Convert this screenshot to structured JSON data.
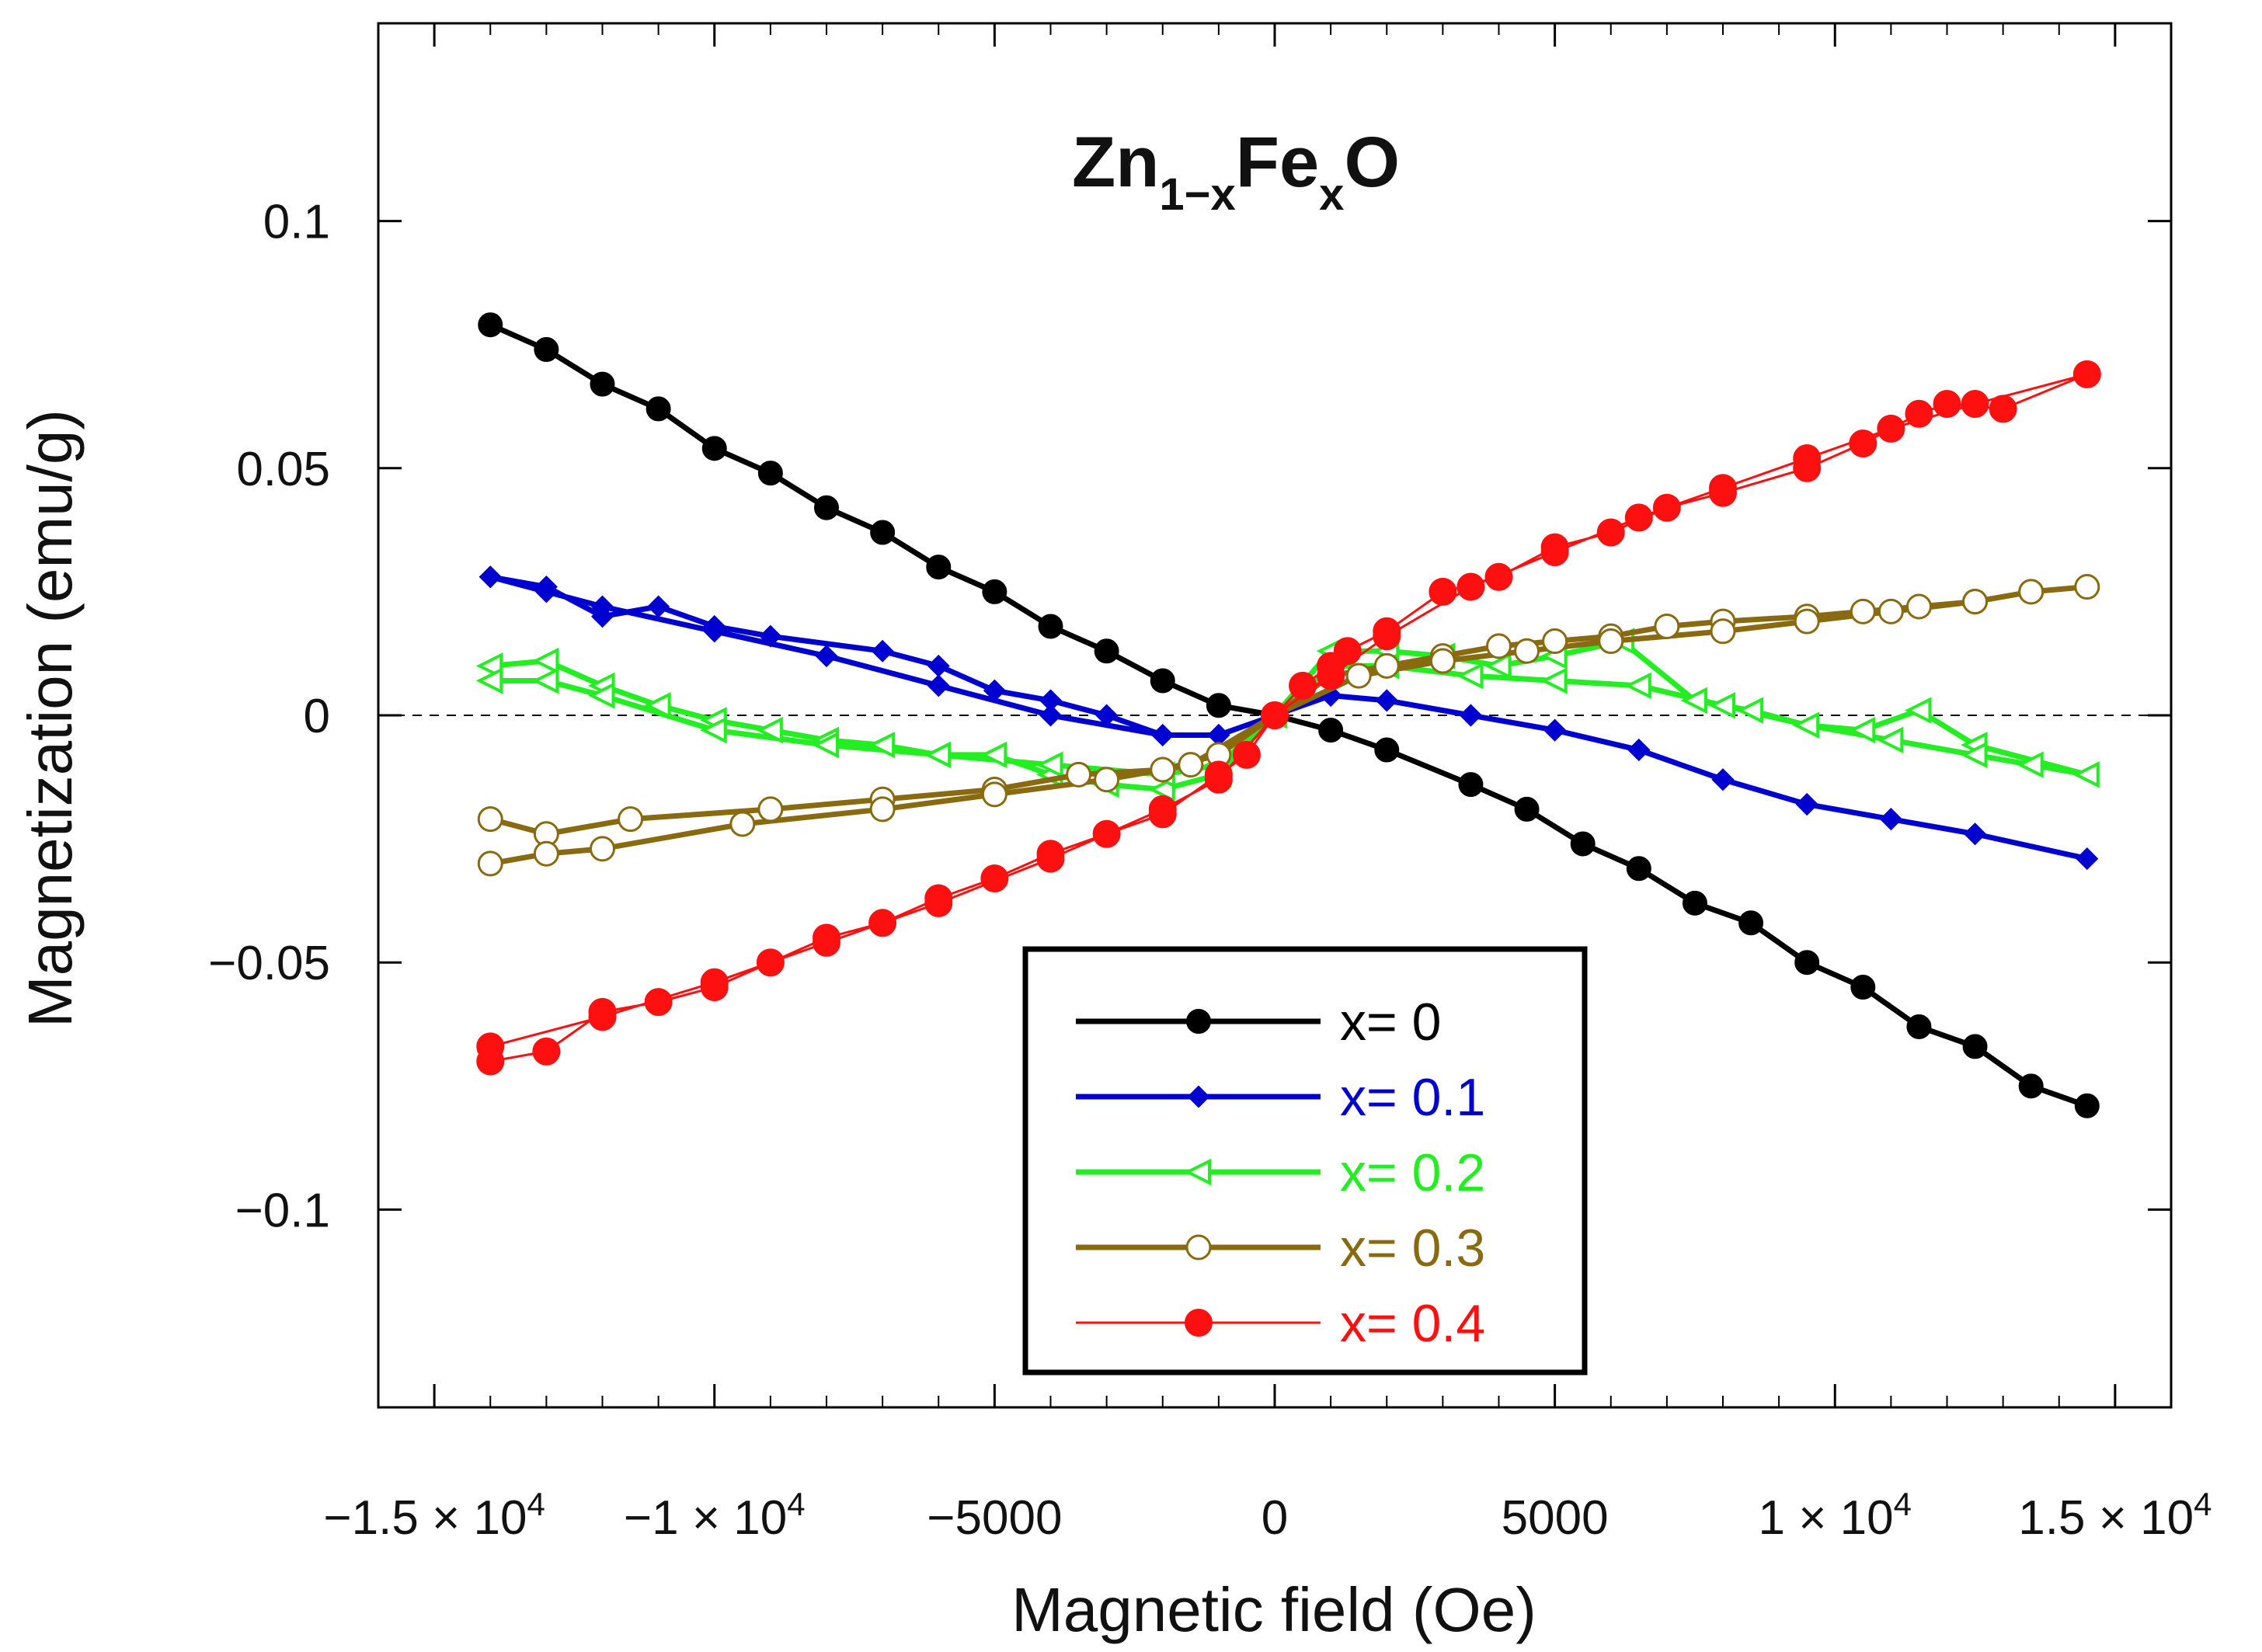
{
  "chart_data": {
    "type": "line",
    "title": {
      "base": "Zn",
      "sub1": "1−x",
      "mid": "Fe",
      "sub2": "x",
      "end": "O"
    },
    "xlabel": "Magnetic field (Oe)",
    "ylabel": "Magnetization (emu/g)",
    "xlim": [
      -16000,
      16000
    ],
    "ylim": [
      -0.14,
      0.14
    ],
    "x_ticks": [
      {
        "value": -15000,
        "mant": "−1.5 × 10",
        "exp": "4"
      },
      {
        "value": -10000,
        "mant": "−1 × 10",
        "exp": "4"
      },
      {
        "value": -5000,
        "mant": "−5000",
        "exp": ""
      },
      {
        "value": 0,
        "mant": "0",
        "exp": ""
      },
      {
        "value": 5000,
        "mant": "5000",
        "exp": ""
      },
      {
        "value": 10000,
        "mant": "1 × 10",
        "exp": "4"
      },
      {
        "value": 15000,
        "mant": "1.5 × 10",
        "exp": "4"
      }
    ],
    "y_ticks": [
      {
        "value": 0.1,
        "label": "0.1"
      },
      {
        "value": 0.05,
        "label": "0.05"
      },
      {
        "value": 0,
        "label": "0"
      },
      {
        "value": -0.05,
        "label": "−0.05"
      },
      {
        "value": -0.1,
        "label": "−0.1"
      }
    ],
    "zero_line": true,
    "legend_position": "bottom-center",
    "series": [
      {
        "name": "x= 0",
        "color": "#000000",
        "marker": "circle-filled",
        "line_width": 7,
        "points": [
          [
            -14000,
            0.079
          ],
          [
            -13000,
            0.074
          ],
          [
            -12000,
            0.067
          ],
          [
            -11000,
            0.062
          ],
          [
            -10000,
            0.054
          ],
          [
            -9000,
            0.049
          ],
          [
            -8000,
            0.042
          ],
          [
            -7000,
            0.037
          ],
          [
            -6000,
            0.03
          ],
          [
            -5000,
            0.025
          ],
          [
            -4000,
            0.018
          ],
          [
            -3000,
            0.013
          ],
          [
            -2000,
            0.007
          ],
          [
            -1000,
            0.002
          ],
          [
            0,
            0.0
          ],
          [
            1000,
            -0.003
          ],
          [
            2000,
            -0.007
          ],
          [
            3500,
            -0.014
          ],
          [
            4500,
            -0.019
          ],
          [
            5500,
            -0.026
          ],
          [
            6500,
            -0.031
          ],
          [
            7500,
            -0.038
          ],
          [
            8500,
            -0.042
          ],
          [
            9500,
            -0.05
          ],
          [
            10500,
            -0.055
          ],
          [
            11500,
            -0.063
          ],
          [
            12500,
            -0.067
          ],
          [
            13500,
            -0.075
          ],
          [
            14500,
            -0.079
          ]
        ]
      },
      {
        "name": "x= 0.1",
        "color": "#0000d0",
        "marker": "diamond-filled",
        "line_width": 7,
        "points": [
          [
            -14000,
            0.028
          ],
          [
            -13000,
            0.026
          ],
          [
            -12000,
            0.02
          ],
          [
            -11000,
            0.022
          ],
          [
            -10000,
            0.018
          ],
          [
            -9000,
            0.016
          ],
          [
            -7000,
            0.013
          ],
          [
            -6000,
            0.01
          ],
          [
            -5000,
            0.005
          ],
          [
            -4000,
            0.003
          ],
          [
            -3000,
            0.0
          ],
          [
            -2000,
            -0.004
          ],
          [
            -1000,
            -0.004
          ],
          [
            0,
            0.0
          ],
          [
            1000,
            0.004
          ],
          [
            2000,
            0.003
          ],
          [
            3500,
            0.0
          ],
          [
            5000,
            -0.003
          ],
          [
            6500,
            -0.007
          ],
          [
            8000,
            -0.013
          ],
          [
            9500,
            -0.018
          ],
          [
            11000,
            -0.021
          ],
          [
            12500,
            -0.024
          ],
          [
            14500,
            -0.029
          ],
          [
            12500,
            -0.024
          ],
          [
            11000,
            -0.021
          ],
          [
            9500,
            -0.018
          ],
          [
            8000,
            -0.013
          ],
          [
            6500,
            -0.007
          ],
          [
            5000,
            -0.003
          ],
          [
            3500,
            0.0
          ],
          [
            2000,
            0.003
          ],
          [
            1000,
            0.004
          ],
          [
            0,
            0.0
          ],
          [
            -1000,
            -0.004
          ],
          [
            -2000,
            -0.004
          ],
          [
            -4000,
            0.0
          ],
          [
            -6000,
            0.006
          ],
          [
            -8000,
            0.012
          ],
          [
            -10000,
            0.017
          ],
          [
            -12000,
            0.022
          ],
          [
            -13000,
            0.025
          ],
          [
            -14000,
            0.028
          ]
        ]
      },
      {
        "name": "x= 0.2",
        "color": "#22ee22",
        "marker": "triangle-open",
        "line_width": 7,
        "points": [
          [
            -14000,
            0.01
          ],
          [
            -13000,
            0.011
          ],
          [
            -12000,
            0.006
          ],
          [
            -11000,
            0.002
          ],
          [
            -10000,
            -0.001
          ],
          [
            -9000,
            -0.003
          ],
          [
            -8000,
            -0.005
          ],
          [
            -7000,
            -0.006
          ],
          [
            -6000,
            -0.008
          ],
          [
            -5000,
            -0.008
          ],
          [
            -4000,
            -0.012
          ],
          [
            -3000,
            -0.014
          ],
          [
            -2000,
            -0.015
          ],
          [
            -1000,
            -0.012
          ],
          [
            0,
            0.0
          ],
          [
            1000,
            0.013
          ],
          [
            2000,
            0.013
          ],
          [
            3000,
            0.012
          ],
          [
            4000,
            0.01
          ],
          [
            5000,
            0.012
          ],
          [
            6200,
            0.015
          ],
          [
            7500,
            0.003
          ],
          [
            8500,
            0.001
          ],
          [
            9500,
            -0.002
          ],
          [
            10500,
            -0.003
          ],
          [
            11500,
            0.001
          ],
          [
            12500,
            -0.006
          ],
          [
            14500,
            -0.012
          ],
          [
            13500,
            -0.01
          ],
          [
            12500,
            -0.008
          ],
          [
            11000,
            -0.005
          ],
          [
            9500,
            -0.002
          ],
          [
            8000,
            0.002
          ],
          [
            6500,
            0.006
          ],
          [
            5000,
            0.007
          ],
          [
            3500,
            0.008
          ],
          [
            2000,
            0.01
          ],
          [
            1000,
            0.01
          ],
          [
            0,
            0.0
          ],
          [
            -1000,
            -0.01
          ],
          [
            -2000,
            -0.012
          ],
          [
            -4000,
            -0.01
          ],
          [
            -6000,
            -0.008
          ],
          [
            -8000,
            -0.006
          ],
          [
            -10000,
            -0.003
          ],
          [
            -12000,
            0.004
          ],
          [
            -13000,
            0.007
          ],
          [
            -14000,
            0.007
          ]
        ]
      },
      {
        "name": "x= 0.3",
        "color": "#8a6a10",
        "marker": "circle-open",
        "line_width": 7,
        "points": [
          [
            -14000,
            -0.021
          ],
          [
            -13000,
            -0.024
          ],
          [
            -11500,
            -0.021
          ],
          [
            -9000,
            -0.019
          ],
          [
            -7000,
            -0.017
          ],
          [
            -5000,
            -0.015
          ],
          [
            -3500,
            -0.012
          ],
          [
            -2000,
            -0.011
          ],
          [
            -1000,
            -0.008
          ],
          [
            0,
            0.0
          ],
          [
            1000,
            0.008
          ],
          [
            2000,
            0.01
          ],
          [
            3000,
            0.012
          ],
          [
            4000,
            0.014
          ],
          [
            5000,
            0.015
          ],
          [
            6000,
            0.016
          ],
          [
            7000,
            0.018
          ],
          [
            8000,
            0.019
          ],
          [
            9500,
            0.02
          ],
          [
            10500,
            0.021
          ],
          [
            11500,
            0.022
          ],
          [
            12500,
            0.023
          ],
          [
            13500,
            0.025
          ],
          [
            14500,
            0.026
          ],
          [
            13500,
            0.025
          ],
          [
            12500,
            0.023
          ],
          [
            11000,
            0.021
          ],
          [
            9500,
            0.019
          ],
          [
            8000,
            0.017
          ],
          [
            6000,
            0.015
          ],
          [
            4500,
            0.013
          ],
          [
            3000,
            0.011
          ],
          [
            1500,
            0.008
          ],
          [
            0,
            0.0
          ],
          [
            -1500,
            -0.01
          ],
          [
            -3000,
            -0.013
          ],
          [
            -5000,
            -0.016
          ],
          [
            -7000,
            -0.019
          ],
          [
            -9500,
            -0.022
          ],
          [
            -12000,
            -0.027
          ],
          [
            -13000,
            -0.028
          ],
          [
            -14000,
            -0.03
          ]
        ]
      },
      {
        "name": "x= 0.4",
        "color": "#ff1010",
        "marker": "circle-filled",
        "line_width": 3,
        "points": [
          [
            -14000,
            -0.07
          ],
          [
            -13000,
            -0.068
          ],
          [
            -12000,
            -0.06
          ],
          [
            -11000,
            -0.058
          ],
          [
            -10000,
            -0.055
          ],
          [
            -9000,
            -0.05
          ],
          [
            -8000,
            -0.045
          ],
          [
            -7000,
            -0.042
          ],
          [
            -6000,
            -0.037
          ],
          [
            -5000,
            -0.033
          ],
          [
            -4000,
            -0.028
          ],
          [
            -3000,
            -0.024
          ],
          [
            -2000,
            -0.02
          ],
          [
            -1000,
            -0.012
          ],
          [
            -500,
            -0.008
          ],
          [
            0,
            0.0
          ],
          [
            500,
            0.006
          ],
          [
            1000,
            0.01
          ],
          [
            1300,
            0.013
          ],
          [
            2000,
            0.017
          ],
          [
            3000,
            0.025
          ],
          [
            4000,
            0.028
          ],
          [
            5000,
            0.034
          ],
          [
            6000,
            0.037
          ],
          [
            7000,
            0.042
          ],
          [
            8000,
            0.045
          ],
          [
            9500,
            0.05
          ],
          [
            10500,
            0.055
          ],
          [
            11500,
            0.061
          ],
          [
            12000,
            0.063
          ],
          [
            13000,
            0.062
          ],
          [
            14500,
            0.069
          ],
          [
            12500,
            0.063
          ],
          [
            11000,
            0.058
          ],
          [
            9500,
            0.052
          ],
          [
            8000,
            0.046
          ],
          [
            6500,
            0.04
          ],
          [
            5000,
            0.033
          ],
          [
            3500,
            0.026
          ],
          [
            2000,
            0.016
          ],
          [
            1000,
            0.008
          ],
          [
            0,
            0.0
          ],
          [
            -1000,
            -0.013
          ],
          [
            -2000,
            -0.019
          ],
          [
            -4000,
            -0.029
          ],
          [
            -6000,
            -0.038
          ],
          [
            -8000,
            -0.046
          ],
          [
            -10000,
            -0.054
          ],
          [
            -12000,
            -0.061
          ],
          [
            -14000,
            -0.067
          ]
        ]
      }
    ]
  }
}
